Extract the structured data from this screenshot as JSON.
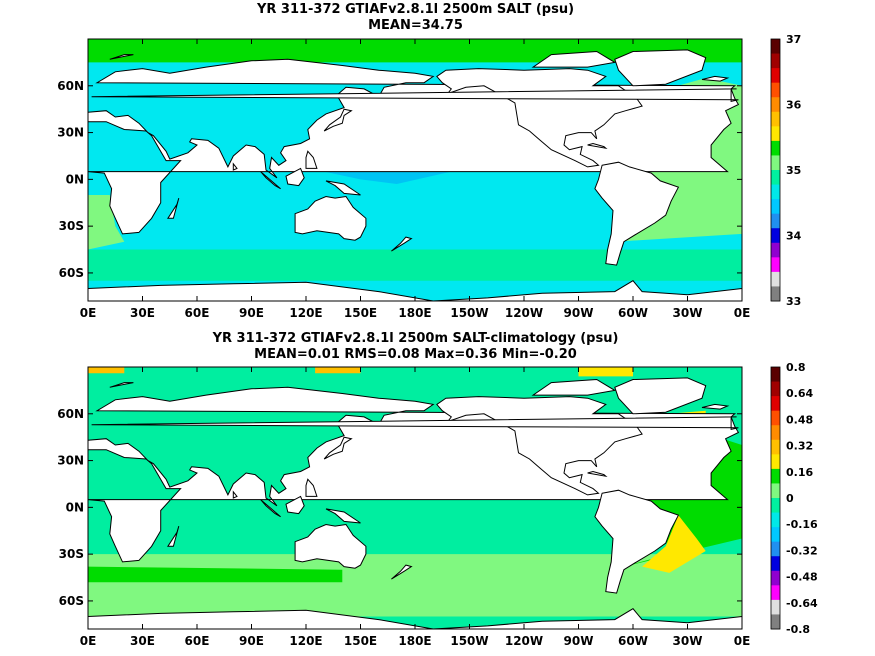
{
  "panels": [
    {
      "title": "YR 311-372 GTIAFv2.8.1l 2500m SALT (psu)",
      "subtitle": "MEAN=34.75",
      "x_ticks": [
        "0E",
        "30E",
        "60E",
        "90E",
        "120E",
        "150E",
        "180E",
        "150W",
        "120W",
        "90W",
        "60W",
        "30W",
        "0E"
      ],
      "y_ticks": [
        "60N",
        "30N",
        "0N",
        "30S",
        "60S"
      ],
      "colorbar": {
        "labels": [
          "37",
          "36",
          "35",
          "34",
          "33"
        ],
        "colors": [
          "#5a0000",
          "#a00000",
          "#e00000",
          "#ff5000",
          "#ff8c00",
          "#ffc000",
          "#ffe800",
          "#00dc00",
          "#80f880",
          "#00f0a0",
          "#00e8e8",
          "#00c8ff",
          "#2090f0",
          "#0000e0",
          "#9000d0",
          "#ff00ff",
          "#e0e0e0",
          "#808080"
        ]
      },
      "regions": {
        "ocean_default": "#00e8f0",
        "north_pacific": "#00c4f4",
        "southern_ring": "#00eea0",
        "atlantic": "#80f880",
        "atlantic_north": "#00dc00"
      }
    },
    {
      "title": "YR 311-372 GTIAFv2.8.1l 2500m SALT-climatology (psu)",
      "subtitle": "MEAN=0.01   RMS=0.08   Max=0.36   Min=-0.20",
      "x_ticks": [
        "0E",
        "30E",
        "60E",
        "90E",
        "120E",
        "150E",
        "180E",
        "150W",
        "120W",
        "90W",
        "60W",
        "30W",
        "0E"
      ],
      "y_ticks": [
        "60N",
        "30N",
        "0N",
        "30S",
        "60S"
      ],
      "colorbar": {
        "labels": [
          "0.8",
          "0.64",
          "0.48",
          "0.32",
          "0.16",
          "0",
          "-0.16",
          "-0.32",
          "-0.48",
          "-0.64",
          "-0.8"
        ],
        "colors": [
          "#5a0000",
          "#a00000",
          "#e00000",
          "#ff5000",
          "#ff8c00",
          "#ffc000",
          "#ffe800",
          "#00dc00",
          "#80f880",
          "#00f0a0",
          "#00e8e8",
          "#00c8ff",
          "#2090f0",
          "#0000e0",
          "#9000d0",
          "#ff00ff",
          "#e0e0e0",
          "#808080"
        ]
      },
      "regions": {
        "ocean_default": "#00eea0",
        "southern_band": "#80f880",
        "southern_strong": "#00dc00",
        "atlantic_green": "#00dc00",
        "atlantic_yellow": "#ffe800",
        "arctic_orange": "#ffc000"
      }
    }
  ],
  "chart_data": [
    {
      "type": "heatmap",
      "title": "YR 311-372 GTIAFv2.8.1l 2500m SALT (psu)",
      "subtitle": "MEAN=34.75",
      "x_range": [
        "0E",
        "0E"
      ],
      "y_range": [
        -78,
        90
      ],
      "colorbar_range": [
        33,
        37
      ],
      "colorbar_ticks": [
        33,
        34,
        35,
        36,
        37
      ],
      "mean": 34.75
    },
    {
      "type": "heatmap",
      "title": "YR 311-372 GTIAFv2.8.1l 2500m SALT-climatology (psu)",
      "subtitle": "MEAN=0.01   RMS=0.08   Max=0.36   Min=-0.20",
      "x_range": [
        "0E",
        "0E"
      ],
      "y_range": [
        -78,
        90
      ],
      "colorbar_range": [
        -0.8,
        0.8
      ],
      "colorbar_ticks": [
        -0.8,
        -0.64,
        -0.48,
        -0.32,
        -0.16,
        0,
        0.16,
        0.32,
        0.48,
        0.64,
        0.8
      ],
      "mean": 0.01,
      "rms": 0.08,
      "max": 0.36,
      "min": -0.2
    }
  ]
}
